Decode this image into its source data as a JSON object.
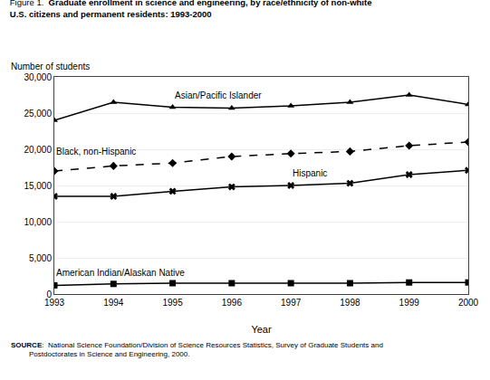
{
  "chart_data": {
    "type": "line",
    "title_prefix": "Figure 1.  ",
    "title": "Graduate enrollment in science and engineering, by race/ethnicity of non-white\nU.S. citizens and permanent residents: 1993-2000",
    "xlabel": "Year",
    "ylabel": "Number of students",
    "x": [
      1993,
      1994,
      1995,
      1996,
      1997,
      1998,
      1999,
      2000
    ],
    "series": [
      {
        "name": "Asian/Pacific Islander",
        "color": "black",
        "marker": "triangle",
        "line_style": "solid",
        "values": [
          24000,
          26500,
          25800,
          25700,
          26000,
          26500,
          27500,
          26200
        ]
      },
      {
        "name": "Black, non-Hispanic",
        "color": "black",
        "marker": "diamond",
        "line_style": "dashed",
        "values": [
          17000,
          17700,
          18100,
          19000,
          19400,
          19700,
          20500,
          21000
        ]
      },
      {
        "name": "Hispanic",
        "color": "black",
        "marker": "x",
        "line_style": "solid",
        "values": [
          13500,
          13500,
          14200,
          14800,
          15000,
          15300,
          16500,
          17100
        ]
      },
      {
        "name": "American Indian/Alaskan Native",
        "color": "black",
        "marker": "square",
        "line_style": "solid",
        "values": [
          1200,
          1400,
          1500,
          1500,
          1500,
          1500,
          1600,
          1600
        ]
      }
    ],
    "xlim": [
      1993,
      2000
    ],
    "xticks": [
      1993,
      1994,
      1995,
      1996,
      1997,
      1998,
      1999,
      2000
    ],
    "ylim": [
      0,
      30000
    ],
    "yticks": [
      0,
      {
        "value": 5000,
        "label": "5,000"
      },
      {
        "value": 10000,
        "label": "10,000"
      },
      {
        "value": 15000,
        "label": "15,000"
      },
      {
        "value": 20000,
        "label": "20,000"
      },
      {
        "value": 25000,
        "label": "25,000"
      },
      {
        "value": 30000,
        "label": "30,000"
      }
    ],
    "grid": "y",
    "source": [
      "SOURCE",
      ":  National Science Foundation/Division of Science Resources Statistics, Survey of Graduate Students and\n         Postdoctorates in Science and Engineering, 2000."
    ]
  }
}
